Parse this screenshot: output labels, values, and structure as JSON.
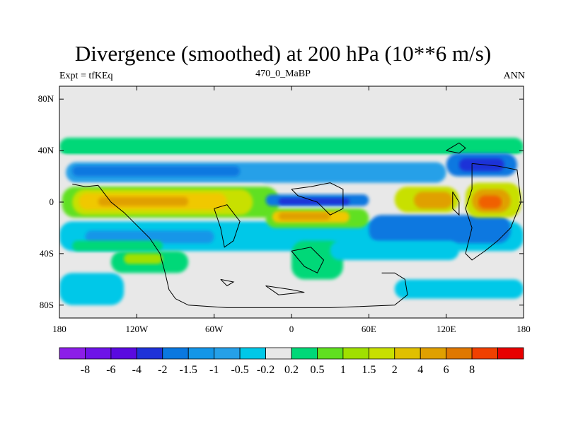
{
  "title": "Divergence (smoothed) at 200 hPa (10**6 m/s)",
  "left_label": "Expt = tfKEq",
  "center_label": "470_0_MaBP",
  "right_label": "ANN",
  "colors": {
    "background_field": "#e8e8e8",
    "coast": "#000000"
  },
  "map": {
    "lat_ticks": [
      {
        "lat": 80,
        "label": "80N"
      },
      {
        "lat": 40,
        "label": "40N"
      },
      {
        "lat": 0,
        "label": "0"
      },
      {
        "lat": -40,
        "label": "40S"
      },
      {
        "lat": -80,
        "label": "80S"
      }
    ],
    "lon_ticks": [
      {
        "lon": -180,
        "label": "180"
      },
      {
        "lon": -120,
        "label": "120W"
      },
      {
        "lon": -60,
        "label": "60W"
      },
      {
        "lon": 0,
        "label": "0"
      },
      {
        "lon": 60,
        "label": "60E"
      },
      {
        "lon": 120,
        "label": "120E"
      },
      {
        "lon": 180,
        "label": "180"
      }
    ],
    "bands": [
      {
        "lon": [
          -180,
          180
        ],
        "lat": [
          36,
          50
        ],
        "color": "#00d878"
      },
      {
        "lon": [
          -180,
          180
        ],
        "lat": [
          32,
          37
        ],
        "color": "#e8e8e8"
      },
      {
        "lon": [
          -175,
          120
        ],
        "lat": [
          15,
          31
        ],
        "color": "#26a0e8"
      },
      {
        "lon": [
          -170,
          -40
        ],
        "lat": [
          20,
          28
        ],
        "color": "#0a78e0"
      },
      {
        "lon": [
          -175,
          -20
        ],
        "lat": [
          6,
          14
        ],
        "color": "#e8e8e8"
      },
      {
        "lon": [
          -180,
          180
        ],
        "lat": [
          -38,
          -15
        ],
        "color": "#00c8e8"
      },
      {
        "lon": [
          -160,
          -60
        ],
        "lat": [
          -32,
          -22
        ],
        "color": "#1496e8"
      },
      {
        "lon": [
          60,
          170
        ],
        "lat": [
          -32,
          -10
        ],
        "color": "#0a78e0"
      },
      {
        "lon": [
          -170,
          -100
        ],
        "lat": [
          -38,
          -30
        ],
        "color": "#00d878"
      },
      {
        "lon": [
          -140,
          -80
        ],
        "lat": [
          -55,
          -38
        ],
        "color": "#00d878"
      },
      {
        "lon": [
          -130,
          -100
        ],
        "lat": [
          -48,
          -40
        ],
        "color": "#a0e000"
      },
      {
        "lon": [
          0,
          40
        ],
        "lat": [
          -60,
          -30
        ],
        "color": "#00d878"
      },
      {
        "lon": [
          -180,
          -130
        ],
        "lat": [
          -80,
          -55
        ],
        "color": "#00c8e8"
      },
      {
        "lon": [
          80,
          180
        ],
        "lat": [
          -75,
          -60
        ],
        "color": "#00c8e8"
      },
      {
        "lon": [
          30,
          130
        ],
        "lat": [
          -45,
          -30
        ],
        "color": "#00c8e8"
      },
      {
        "lon": [
          -178,
          -10
        ],
        "lat": [
          -12,
          12
        ],
        "color": "#60e020"
      },
      {
        "lon": [
          -170,
          -30
        ],
        "lat": [
          -10,
          10
        ],
        "color": "#c8e000"
      },
      {
        "lon": [
          -165,
          -50
        ],
        "lat": [
          -6,
          7
        ],
        "color": "#f0c800"
      },
      {
        "lon": [
          -150,
          -80
        ],
        "lat": [
          -3,
          4
        ],
        "color": "#e0a000"
      },
      {
        "lon": [
          -20,
          60
        ],
        "lat": [
          -20,
          -5
        ],
        "color": "#60e020"
      },
      {
        "lon": [
          -15,
          45
        ],
        "lat": [
          -16,
          -7
        ],
        "color": "#f0c800"
      },
      {
        "lon": [
          -10,
          30
        ],
        "lat": [
          -14,
          -8
        ],
        "color": "#e0a000"
      },
      {
        "lon": [
          -20,
          60
        ],
        "lat": [
          -3,
          6
        ],
        "color": "#0a78e0"
      },
      {
        "lon": [
          -10,
          45
        ],
        "lat": [
          -2,
          3
        ],
        "color": "#1e32d8"
      },
      {
        "lon": [
          80,
          130
        ],
        "lat": [
          -8,
          12
        ],
        "color": "#c8e000"
      },
      {
        "lon": [
          95,
          125
        ],
        "lat": [
          -5,
          8
        ],
        "color": "#e0a000"
      },
      {
        "lon": [
          135,
          178
        ],
        "lat": [
          -12,
          15
        ],
        "color": "#c8e000"
      },
      {
        "lon": [
          140,
          170
        ],
        "lat": [
          -8,
          10
        ],
        "color": "#e0a000"
      },
      {
        "lon": [
          145,
          163
        ],
        "lat": [
          -5,
          5
        ],
        "color": "#f06000"
      },
      {
        "lon": [
          120,
          175
        ],
        "lat": [
          20,
          38
        ],
        "color": "#0a78e0"
      },
      {
        "lon": [
          130,
          165
        ],
        "lat": [
          24,
          34
        ],
        "color": "#1e32d8"
      }
    ],
    "coastlines": [
      [
        [
          -170,
          14
        ],
        [
          -160,
          12
        ],
        [
          -150,
          13
        ],
        [
          -140,
          0
        ],
        [
          -130,
          -8
        ],
        [
          -120,
          -18
        ],
        [
          -110,
          -28
        ],
        [
          -102,
          -40
        ],
        [
          -98,
          -55
        ],
        [
          -95,
          -68
        ],
        [
          -90,
          -75
        ],
        [
          -80,
          -80
        ],
        [
          -50,
          -82
        ],
        [
          30,
          -82
        ],
        [
          80,
          -80
        ],
        [
          90,
          -72
        ],
        [
          88,
          -60
        ],
        [
          80,
          -55
        ],
        [
          70,
          -55
        ]
      ],
      [
        [
          -60,
          -5
        ],
        [
          -55,
          -20
        ],
        [
          -52,
          -35
        ],
        [
          -45,
          -30
        ],
        [
          -40,
          -15
        ],
        [
          -50,
          -2
        ],
        [
          -60,
          -5
        ]
      ],
      [
        [
          0,
          10
        ],
        [
          15,
          12
        ],
        [
          30,
          15
        ],
        [
          40,
          10
        ],
        [
          40,
          -5
        ],
        [
          30,
          -10
        ],
        [
          20,
          0
        ],
        [
          5,
          5
        ],
        [
          0,
          10
        ]
      ],
      [
        [
          0,
          -38
        ],
        [
          10,
          -50
        ],
        [
          20,
          -55
        ],
        [
          25,
          -45
        ],
        [
          15,
          -35
        ],
        [
          0,
          -38
        ]
      ],
      [
        [
          -20,
          -65
        ],
        [
          0,
          -68
        ],
        [
          10,
          -70
        ],
        [
          -10,
          -72
        ],
        [
          -20,
          -65
        ]
      ],
      [
        [
          -55,
          -60
        ],
        [
          -45,
          -62
        ],
        [
          -50,
          -65
        ],
        [
          -55,
          -60
        ]
      ],
      [
        [
          120,
          40
        ],
        [
          130,
          38
        ],
        [
          135,
          42
        ],
        [
          130,
          46
        ],
        [
          120,
          40
        ]
      ],
      [
        [
          140,
          30
        ],
        [
          160,
          28
        ],
        [
          175,
          25
        ],
        [
          178,
          0
        ],
        [
          170,
          -20
        ],
        [
          160,
          -30
        ],
        [
          150,
          -38
        ],
        [
          140,
          -45
        ],
        [
          135,
          -40
        ],
        [
          140,
          -20
        ],
        [
          135,
          -5
        ],
        [
          140,
          10
        ],
        [
          140,
          30
        ]
      ],
      [
        [
          125,
          8
        ],
        [
          130,
          0
        ],
        [
          130,
          -10
        ],
        [
          125,
          -5
        ],
        [
          125,
          8
        ]
      ]
    ]
  },
  "colorbar": {
    "colors": [
      "#8c1ee8",
      "#6e14e8",
      "#5a0ae0",
      "#1e32d8",
      "#0a78e0",
      "#1496e8",
      "#26a0e8",
      "#00c8e8",
      "#e8e8e8",
      "#00d878",
      "#60e020",
      "#a0e000",
      "#c8e000",
      "#e0c000",
      "#e0a000",
      "#e07800",
      "#f04000",
      "#e80000"
    ],
    "labels": [
      "-8",
      "-6",
      "-4",
      "-2",
      "-1.5",
      "-1",
      "-0.5",
      "-0.2",
      "0.2",
      "0.5",
      "1",
      "1.5",
      "2",
      "4",
      "6",
      "8"
    ]
  }
}
